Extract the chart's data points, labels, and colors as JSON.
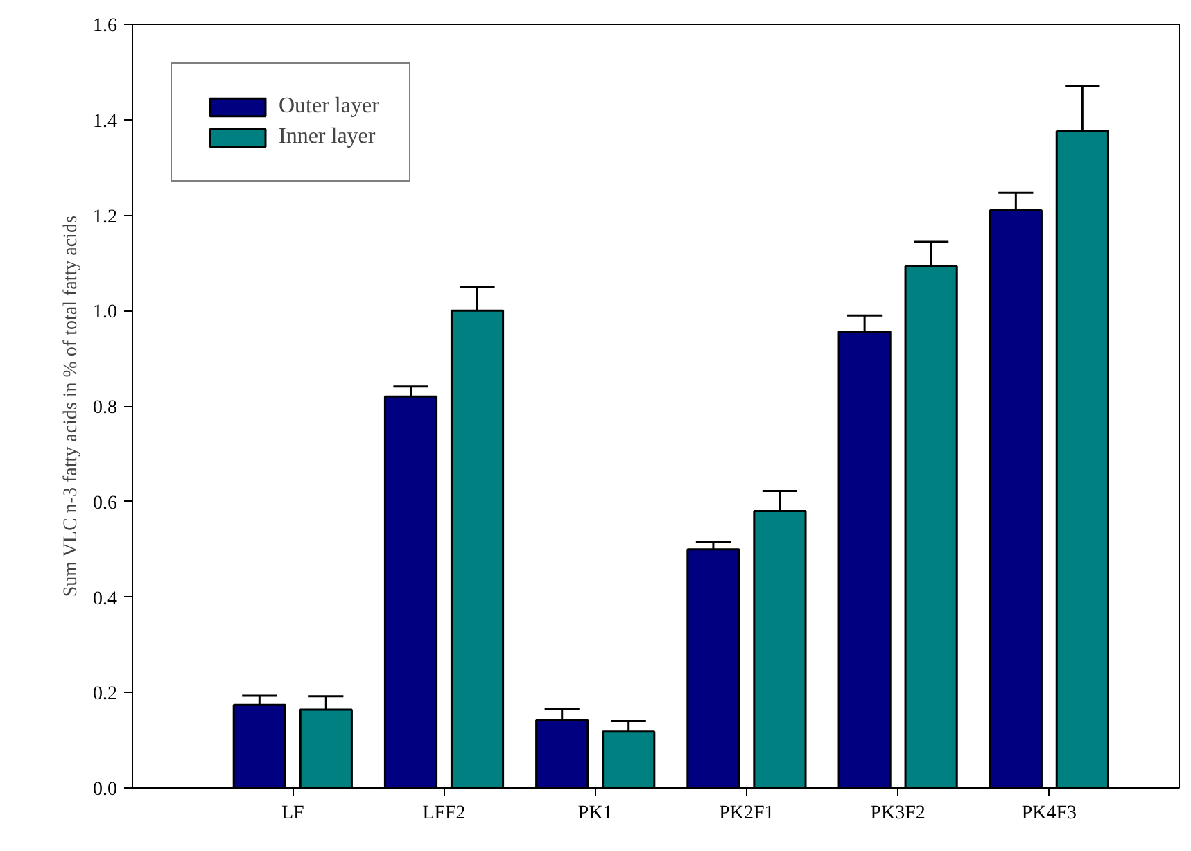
{
  "chart_data": {
    "type": "bar",
    "ylabel": "Sum VLC n-3 fatty acids in % of total fatty acids",
    "categories": [
      "LF",
      "LFF2",
      "PK1",
      "PK2F1",
      "PK3F2",
      "PK4F3"
    ],
    "series": [
      {
        "name": "Outer layer",
        "color": "#000080",
        "values": [
          0.174,
          0.82,
          0.142,
          0.5,
          0.956,
          1.21
        ],
        "errors": [
          0.019,
          0.021,
          0.024,
          0.016,
          0.034,
          0.037
        ]
      },
      {
        "name": "Inner layer",
        "color": "#008080",
        "values": [
          0.164,
          1.0,
          0.118,
          0.58,
          1.093,
          1.376
        ],
        "errors": [
          0.028,
          0.05,
          0.022,
          0.042,
          0.051,
          0.095
        ]
      }
    ],
    "ylim": [
      0,
      1.6
    ],
    "yticks": [
      {
        "value": 0,
        "label": "0.0"
      },
      {
        "value": 0.2,
        "label": "0.2"
      },
      {
        "value": 0.4,
        "label": "0.4"
      },
      {
        "value": 0.6,
        "label": "0.6"
      },
      {
        "value": 0.8,
        "label": "0.8"
      },
      {
        "value": 1.0,
        "label": "1.0"
      },
      {
        "value": 1.2,
        "label": "1.2"
      },
      {
        "value": 1.4,
        "label": "1.4"
      },
      {
        "value": 1.6,
        "label": "1.6"
      }
    ],
    "grid": false,
    "legend": "top left"
  }
}
